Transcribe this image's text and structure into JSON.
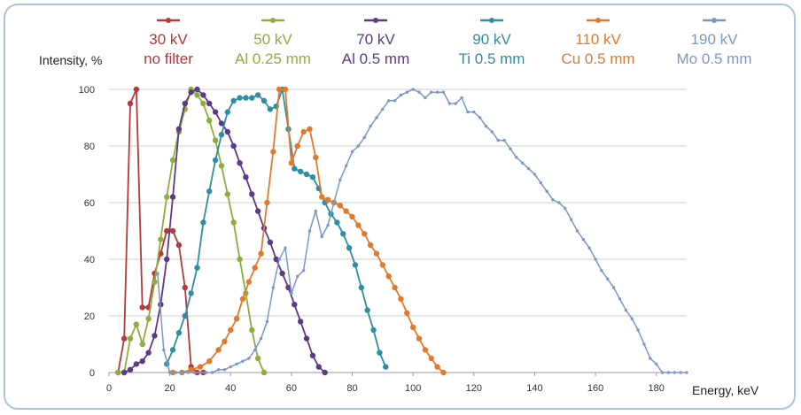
{
  "chart_data": {
    "type": "line",
    "ylabel": "Intensity, %",
    "xlabel": "Energy, keV",
    "xlim": [
      0,
      190
    ],
    "ylim": [
      0,
      100
    ],
    "xticks": [
      "0",
      "20",
      "40",
      "60",
      "80",
      "100",
      "120",
      "140",
      "160",
      "180"
    ],
    "yticks": [
      "0",
      "20",
      "40",
      "60",
      "80",
      "100"
    ],
    "grid": "horizontal",
    "legend_position": "top",
    "series": [
      {
        "name": "30 kV",
        "sub": "no filter",
        "color": "#b5383a",
        "x": [
          3,
          5,
          7,
          9,
          11,
          13,
          15,
          17,
          19,
          21,
          23,
          25,
          27,
          29,
          31
        ],
        "y": [
          0,
          12,
          95,
          100,
          23,
          23,
          35,
          42,
          50,
          50,
          45,
          30,
          2,
          0,
          0
        ]
      },
      {
        "name": "50 kV",
        "sub": "Al 0.25 mm",
        "color": "#8cae3d",
        "x": [
          3,
          5,
          7,
          9,
          11,
          13,
          15,
          17,
          19,
          21,
          23,
          25,
          27,
          29,
          31,
          33,
          35,
          37,
          39,
          41,
          43,
          45,
          47,
          49,
          51
        ],
        "y": [
          0,
          0,
          12,
          17,
          10,
          19,
          32,
          47,
          62,
          75,
          85,
          93,
          100,
          98,
          95,
          89,
          82,
          73,
          63,
          53,
          40,
          28,
          15,
          5,
          0
        ]
      },
      {
        "name": "70 kV",
        "sub": "Al 0.5 mm",
        "color": "#5e3a86",
        "x": [
          5,
          7,
          9,
          11,
          13,
          15,
          17,
          19,
          21,
          23,
          25,
          27,
          29,
          31,
          33,
          35,
          37,
          39,
          41,
          43,
          45,
          47,
          49,
          51,
          53,
          55,
          57,
          59,
          61,
          63,
          65,
          67,
          69,
          71
        ],
        "y": [
          0,
          1,
          3,
          4,
          7,
          13,
          24,
          40,
          62,
          86,
          95,
          99,
          100,
          98,
          95,
          92,
          88,
          85,
          80,
          74,
          69,
          63,
          57,
          51,
          46,
          40,
          35,
          30,
          24,
          18,
          12,
          6,
          2,
          0
        ]
      },
      {
        "name": "90 kV",
        "sub": "Ti 0.5 mm",
        "color": "#2f8ea3",
        "x": [
          19,
          21,
          23,
          25,
          27,
          29,
          31,
          33,
          35,
          37,
          39,
          41,
          43,
          45,
          47,
          49,
          51,
          53,
          55,
          57,
          59,
          61,
          63,
          65,
          67,
          69,
          71,
          73,
          75,
          77,
          79,
          81,
          83,
          85,
          87,
          89,
          91
        ],
        "y": [
          3,
          8,
          14,
          20,
          28,
          37,
          53,
          64,
          75,
          84,
          92,
          96,
          97,
          97,
          97,
          98,
          96,
          93,
          94,
          100,
          86,
          72,
          71,
          70,
          69,
          65,
          60,
          56,
          53,
          49,
          44,
          38,
          30,
          22,
          15,
          7,
          2
        ]
      },
      {
        "name": "110 kV",
        "sub": "Cu 0.5 mm",
        "color": "#e07a2e",
        "x": [
          21,
          24,
          27,
          30,
          33,
          36,
          38,
          40,
          42,
          44,
          46,
          48,
          50,
          52,
          54,
          56,
          58,
          60,
          62,
          64,
          66,
          68,
          70,
          72,
          74,
          76,
          78,
          80,
          82,
          84,
          86,
          88,
          90,
          92,
          94,
          96,
          98,
          100,
          102,
          104,
          106,
          108,
          110
        ],
        "y": [
          0,
          0,
          1,
          2,
          4,
          8,
          11,
          15,
          19,
          26,
          32,
          37,
          42,
          60,
          78,
          100,
          100,
          74,
          80,
          85,
          86,
          76,
          62,
          61,
          60,
          59,
          57,
          55,
          52,
          49,
          45,
          42,
          38,
          34,
          30,
          26,
          21,
          16,
          12,
          8,
          5,
          2,
          0
        ]
      },
      {
        "name": "190 kV",
        "sub": "Mo 0.5 mm",
        "color": "#7b98c4",
        "x": [
          16,
          18,
          20,
          22,
          24,
          26,
          28,
          30,
          32,
          34,
          36,
          38,
          40,
          42,
          44,
          46,
          48,
          50,
          52,
          54,
          56,
          58,
          60,
          62,
          64,
          66,
          68,
          70,
          72,
          74,
          76,
          78,
          80,
          82,
          84,
          86,
          88,
          90,
          92,
          94,
          96,
          98,
          100,
          102,
          104,
          106,
          108,
          110,
          112,
          114,
          116,
          118,
          120,
          122,
          124,
          126,
          128,
          130,
          132,
          134,
          136,
          138,
          140,
          142,
          144,
          146,
          148,
          150,
          152,
          154,
          156,
          158,
          160,
          162,
          164,
          166,
          168,
          170,
          172,
          174,
          176,
          178,
          180,
          182,
          184,
          186,
          188,
          190
        ],
        "y": [
          35,
          8,
          0,
          0,
          0,
          0,
          0,
          0,
          0,
          0,
          1,
          1,
          2,
          3,
          4,
          5,
          8,
          12,
          18,
          30,
          40,
          44,
          28,
          34,
          36,
          50,
          57,
          48,
          52,
          60,
          68,
          73,
          78,
          80,
          83,
          87,
          90,
          93,
          96,
          96,
          98,
          99,
          100,
          99,
          97,
          99,
          99,
          99,
          95,
          95,
          97,
          92,
          92,
          90,
          87,
          85,
          82,
          82,
          79,
          76,
          74,
          72,
          70,
          67,
          64,
          61,
          60,
          58,
          54,
          50,
          47,
          44,
          40,
          36,
          33,
          30,
          26,
          22,
          19,
          15,
          10,
          5,
          3,
          0,
          0,
          0,
          0,
          0
        ]
      }
    ]
  }
}
